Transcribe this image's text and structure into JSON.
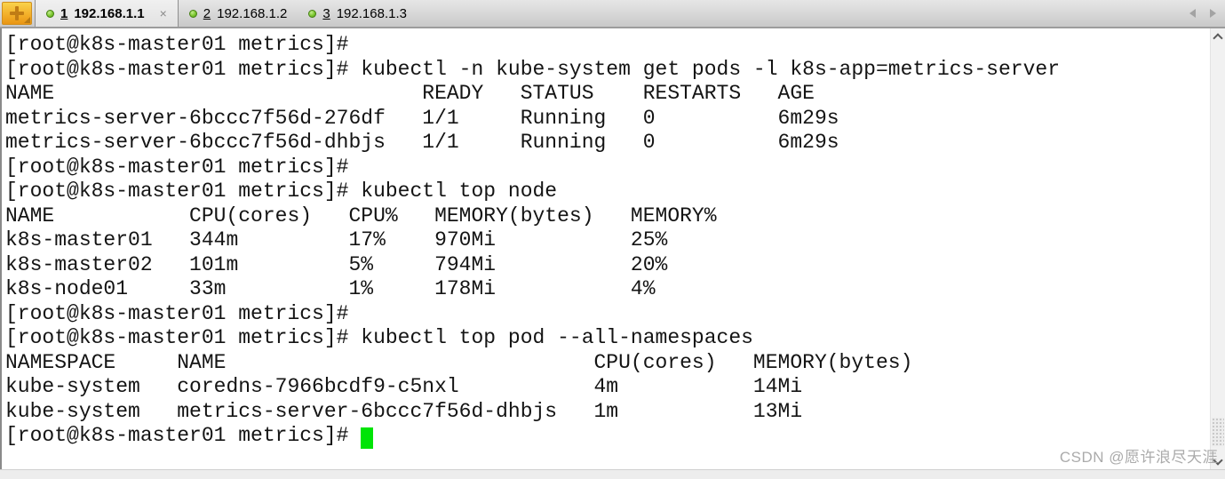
{
  "tab_bar": {
    "tabs": [
      {
        "number": "1",
        "label": "192.168.1.1",
        "active": true
      },
      {
        "number": "2",
        "label": "192.168.1.2",
        "active": false
      },
      {
        "number": "3",
        "label": "192.168.1.3",
        "active": false
      }
    ],
    "close_label": "×"
  },
  "terminal": {
    "lines": [
      "[root@k8s-master01 metrics]# ",
      "[root@k8s-master01 metrics]# kubectl -n kube-system get pods -l k8s-app=metrics-server",
      "NAME                              READY   STATUS    RESTARTS   AGE",
      "metrics-server-6bccc7f56d-276df   1/1     Running   0          6m29s",
      "metrics-server-6bccc7f56d-dhbjs   1/1     Running   0          6m29s",
      "[root@k8s-master01 metrics]# ",
      "[root@k8s-master01 metrics]# kubectl top node",
      "NAME           CPU(cores)   CPU%   MEMORY(bytes)   MEMORY%",
      "k8s-master01   344m         17%    970Mi           25%",
      "k8s-master02   101m         5%     794Mi           20%",
      "k8s-node01     33m          1%     178Mi           4%",
      "[root@k8s-master01 metrics]# ",
      "[root@k8s-master01 metrics]# kubectl top pod --all-namespaces",
      "NAMESPACE     NAME                              CPU(cores)   MEMORY(bytes)",
      "kube-system   coredns-7966bcdf9-c5nxl           4m           14Mi",
      "kube-system   metrics-server-6bccc7f56d-dhbjs   1m           13Mi"
    ],
    "last_prompt": "[root@k8s-master01 metrics]# ",
    "tables": {
      "pods": {
        "headers": [
          "NAME",
          "READY",
          "STATUS",
          "RESTARTS",
          "AGE"
        ],
        "rows": [
          [
            "metrics-server-6bccc7f56d-276df",
            "1/1",
            "Running",
            "0",
            "6m29s"
          ],
          [
            "metrics-server-6bccc7f56d-dhbjs",
            "1/1",
            "Running",
            "0",
            "6m29s"
          ]
        ]
      },
      "top_node": {
        "headers": [
          "NAME",
          "CPU(cores)",
          "CPU%",
          "MEMORY(bytes)",
          "MEMORY%"
        ],
        "rows": [
          [
            "k8s-master01",
            "344m",
            "17%",
            "970Mi",
            "25%"
          ],
          [
            "k8s-master02",
            "101m",
            "5%",
            "794Mi",
            "20%"
          ],
          [
            "k8s-node01",
            "33m",
            "1%",
            "178Mi",
            "4%"
          ]
        ]
      },
      "top_pod": {
        "headers": [
          "NAMESPACE",
          "NAME",
          "CPU(cores)",
          "MEMORY(bytes)"
        ],
        "rows": [
          [
            "kube-system",
            "coredns-7966bcdf9-c5nxl",
            "4m",
            "14Mi"
          ],
          [
            "kube-system",
            "metrics-server-6bccc7f56d-dhbjs",
            "1m",
            "13Mi"
          ]
        ]
      }
    }
  },
  "watermark": {
    "text": "CSDN @愿许浪尽天涯"
  },
  "icons": {
    "new_tab": "plus-icon",
    "connection_status": "green-dot-icon",
    "close_tab": "x-icon",
    "tab_scroll_left": "triangle-left-icon",
    "tab_scroll_right": "triangle-right-icon",
    "scroll_up": "chevron-up-icon",
    "scroll_down": "chevron-down-icon"
  },
  "colors": {
    "accent_orange": "#f3b02a",
    "status_green": "#7cc72f",
    "cursor_green": "#00e407",
    "tab_bar_bg": "#d6d6d6",
    "terminal_bg": "#ffffff",
    "terminal_text": "#141414",
    "watermark_gray": "#ababab"
  }
}
